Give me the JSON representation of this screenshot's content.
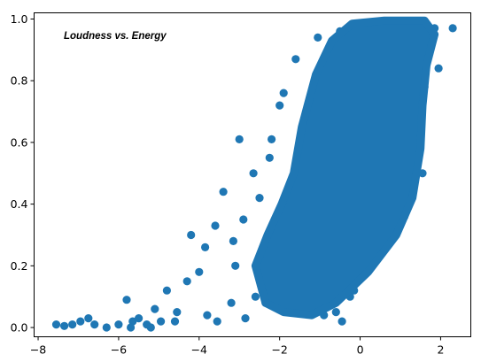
{
  "chart_data": {
    "type": "scatter",
    "title": "Loudness vs. Energy",
    "xlabel": "",
    "ylabel": "",
    "xlim": [
      -8.1,
      2.75
    ],
    "ylim": [
      -0.03,
      1.02
    ],
    "xticks": [
      -8,
      -6,
      -4,
      -2,
      0,
      2
    ],
    "yticks": [
      0.0,
      0.2,
      0.4,
      0.6,
      0.8,
      1.0
    ],
    "xtick_labels": [
      "−8",
      "−6",
      "−4",
      "−2",
      "0",
      "2"
    ],
    "ytick_labels": [
      "0.0",
      "0.2",
      "0.4",
      "0.6",
      "0.8",
      "1.0"
    ],
    "grid": false,
    "marker_color": "#1f77b4",
    "points": [
      [
        -7.55,
        0.01
      ],
      [
        -7.35,
        0.005
      ],
      [
        -7.15,
        0.01
      ],
      [
        -6.95,
        0.02
      ],
      [
        -6.75,
        0.03
      ],
      [
        -6.6,
        0.01
      ],
      [
        -6.3,
        0.0
      ],
      [
        -6.0,
        0.01
      ],
      [
        -5.8,
        0.09
      ],
      [
        -5.65,
        0.02
      ],
      [
        -5.5,
        0.03
      ],
      [
        -5.3,
        0.01
      ],
      [
        -5.1,
        0.06
      ],
      [
        -4.8,
        0.12
      ],
      [
        -4.55,
        0.05
      ],
      [
        -4.3,
        0.15
      ],
      [
        -4.2,
        0.3
      ],
      [
        -4.0,
        0.18
      ],
      [
        -3.85,
        0.26
      ],
      [
        -3.6,
        0.33
      ],
      [
        -3.4,
        0.44
      ],
      [
        -3.15,
        0.28
      ],
      [
        -3.0,
        0.61
      ],
      [
        -2.9,
        0.35
      ],
      [
        -2.65,
        0.5
      ],
      [
        -2.5,
        0.42
      ],
      [
        -2.25,
        0.55
      ],
      [
        -2.2,
        0.61
      ],
      [
        -2.0,
        0.72
      ],
      [
        -1.9,
        0.76
      ],
      [
        -1.6,
        0.87
      ],
      [
        -1.05,
        0.94
      ],
      [
        -0.5,
        0.96
      ],
      [
        0.5,
        0.99
      ],
      [
        1.3,
        0.98
      ],
      [
        1.85,
        0.97
      ],
      [
        2.3,
        0.97
      ],
      [
        1.7,
        0.9
      ],
      [
        1.6,
        0.78
      ],
      [
        1.5,
        0.64
      ],
      [
        1.55,
        0.5
      ],
      [
        1.1,
        0.36
      ],
      [
        0.6,
        0.28
      ],
      [
        0.1,
        0.18
      ],
      [
        -0.25,
        0.1
      ],
      [
        -0.6,
        0.05
      ],
      [
        -0.9,
        0.04
      ],
      [
        -1.3,
        0.06
      ],
      [
        -1.7,
        0.12
      ],
      [
        -2.1,
        0.15
      ],
      [
        -2.6,
        0.1
      ],
      [
        -3.2,
        0.08
      ],
      [
        -3.8,
        0.04
      ],
      [
        -4.6,
        0.02
      ],
      [
        -5.2,
        0.0
      ],
      [
        -4.95,
        0.02
      ],
      [
        -5.7,
        0.0
      ],
      [
        -3.55,
        0.02
      ],
      [
        -2.85,
        0.03
      ],
      [
        -0.45,
        0.02
      ],
      [
        -0.15,
        0.12
      ],
      [
        -1.0,
        0.15
      ],
      [
        -2.35,
        0.08
      ],
      [
        -3.1,
        0.2
      ],
      [
        0.8,
        0.31
      ],
      [
        1.95,
        0.84
      ]
    ]
  }
}
